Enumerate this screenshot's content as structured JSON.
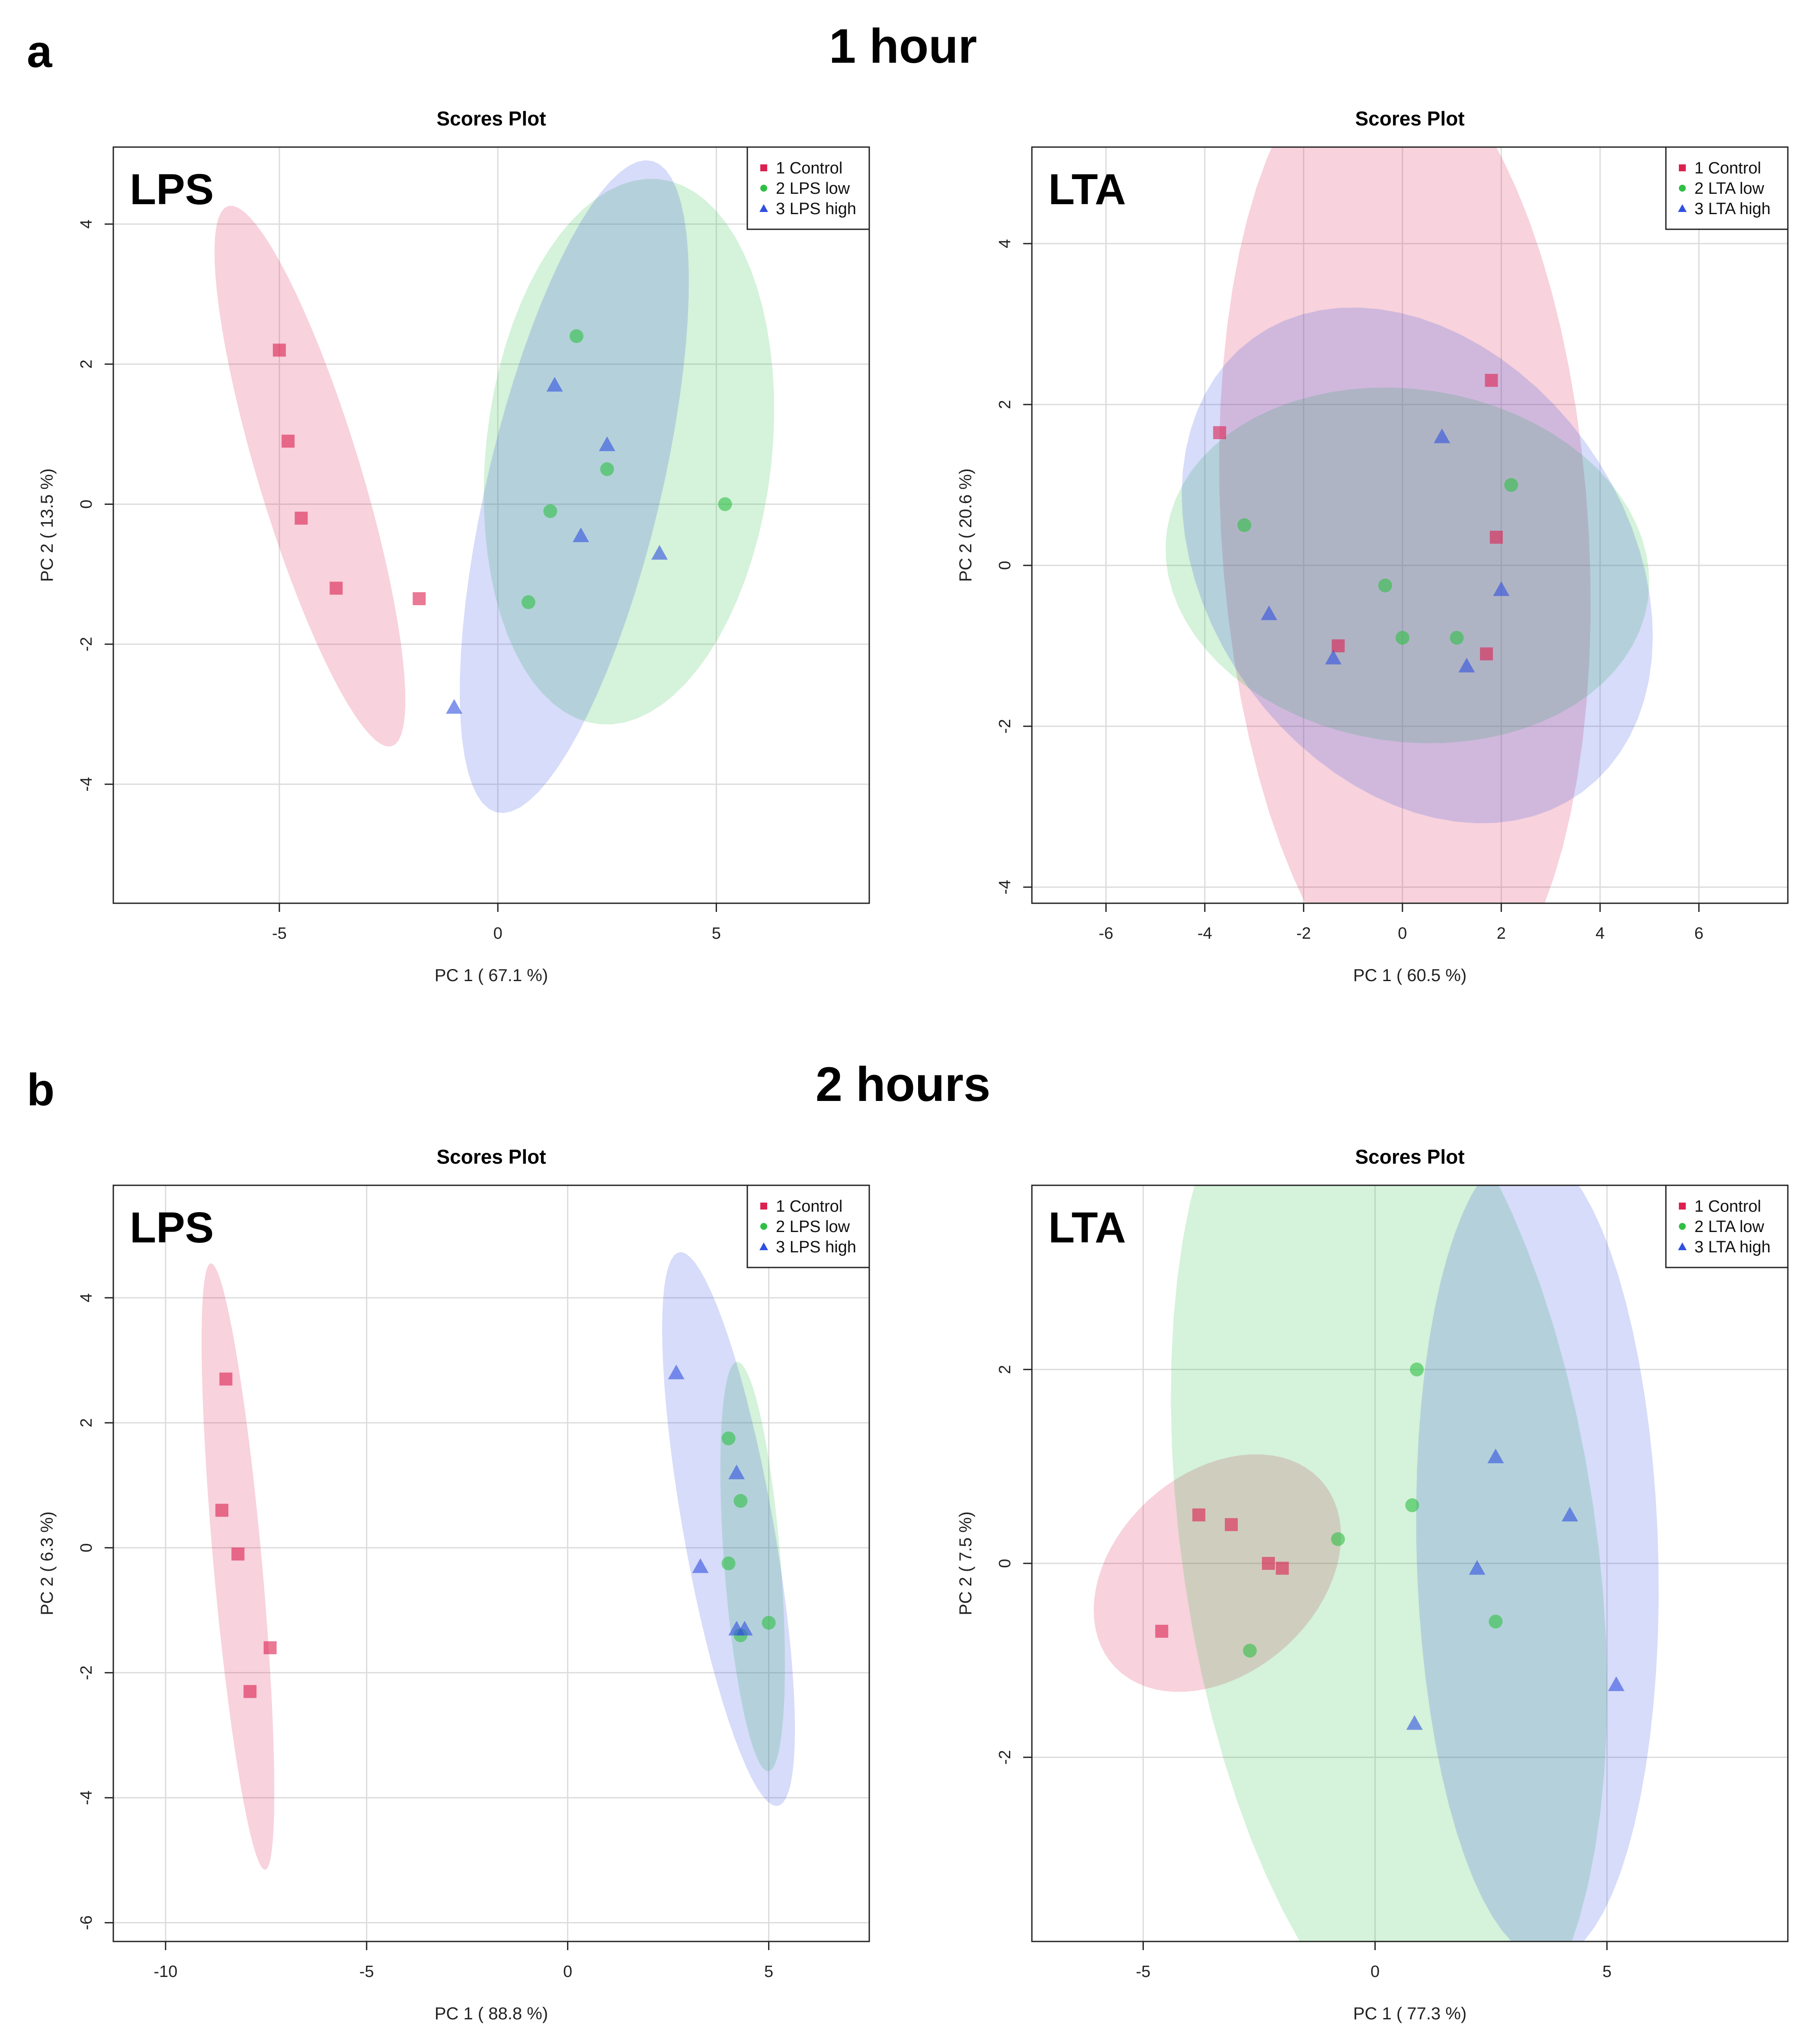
{
  "figure": {
    "rows": [
      {
        "letter": "a",
        "title": "1 hour"
      },
      {
        "letter": "b",
        "title": "2 hours"
      }
    ]
  },
  "colors": {
    "control": "#dc2050",
    "low": "#2fbf45",
    "high": "#3050e0"
  },
  "chart_data": [
    {
      "type": "scatter",
      "title": "Scores Plot",
      "panel_label": "LPS",
      "xlabel": "PC 1 ( 67.1 %)",
      "ylabel": "PC 2 ( 13.5 %)",
      "xlim": [
        -8.8,
        8.5
      ],
      "ylim": [
        -5.7,
        5.1
      ],
      "xticks": [
        -5,
        0,
        5
      ],
      "yticks": [
        -4,
        -2,
        0,
        2,
        4
      ],
      "legend": [
        "1 Control",
        "2 LPS low",
        "3 LPS high"
      ],
      "series": [
        {
          "name": "1 Control",
          "marker": "square",
          "x": [
            -5.0,
            -4.8,
            -4.5,
            -3.7,
            -1.8
          ],
          "y": [
            2.2,
            0.9,
            -0.2,
            -1.2,
            -1.35
          ],
          "ellipse": {
            "cx": -4.3,
            "cy": 0.4,
            "rx": 4.3,
            "ry": 1.1,
            "angle_deg": -63
          }
        },
        {
          "name": "2 LPS low",
          "marker": "circle",
          "x": [
            1.8,
            2.5,
            1.2,
            5.2,
            0.7
          ],
          "y": [
            2.4,
            0.5,
            -0.1,
            0.0,
            -1.4
          ],
          "ellipse": {
            "cx": 3.0,
            "cy": 0.75,
            "rx": 3.2,
            "ry": 4.0,
            "angle_deg": -22
          }
        },
        {
          "name": "3 LPS high",
          "marker": "triangle",
          "x": [
            1.3,
            2.5,
            1.9,
            3.7,
            -1.0
          ],
          "y": [
            1.7,
            0.85,
            -0.45,
            -0.7,
            -2.9
          ],
          "ellipse": {
            "cx": 1.75,
            "cy": 0.25,
            "rx": 5.0,
            "ry": 1.9,
            "angle_deg": 67
          }
        }
      ]
    },
    {
      "type": "scatter",
      "title": "Scores Plot",
      "panel_label": "LTA",
      "xlabel": "PC 1 ( 60.5 %)",
      "ylabel": "PC 2 ( 20.6 %)",
      "xlim": [
        -7.5,
        7.8
      ],
      "ylim": [
        -4.2,
        5.2
      ],
      "xticks": [
        -6,
        -4,
        -2,
        0,
        2,
        4,
        6
      ],
      "yticks": [
        -4,
        -2,
        0,
        2,
        4
      ],
      "legend": [
        "1 Control",
        "2 LTA low",
        "3 LTA high"
      ],
      "series": [
        {
          "name": "1 Control",
          "marker": "square",
          "x": [
            -3.7,
            1.8,
            1.9,
            -1.3,
            1.7
          ],
          "y": [
            1.65,
            2.3,
            0.35,
            -1.0,
            -1.1
          ],
          "ellipse": {
            "cx": 0.05,
            "cy": 0.4,
            "rx": 6.1,
            "ry": 3.7,
            "angle_deg": -82
          }
        },
        {
          "name": "2 LTA low",
          "marker": "circle",
          "x": [
            -3.2,
            2.2,
            -0.35,
            0.0,
            1.1
          ],
          "y": [
            0.5,
            1.0,
            -0.25,
            -0.9,
            -0.9
          ],
          "ellipse": {
            "cx": 0.1,
            "cy": 0.0,
            "rx": 4.9,
            "ry": 2.2,
            "angle_deg": -3
          }
        },
        {
          "name": "3 LTA high",
          "marker": "triangle",
          "x": [
            0.8,
            -2.7,
            -1.4,
            1.3,
            2.0
          ],
          "y": [
            1.6,
            -0.6,
            -1.15,
            -1.25,
            -0.3
          ],
          "ellipse": {
            "cx": 0.3,
            "cy": 0.0,
            "rx": 4.9,
            "ry": 3.0,
            "angle_deg": -17
          }
        }
      ]
    },
    {
      "type": "scatter",
      "title": "Scores Plot",
      "panel_label": "LPS",
      "xlabel": "PC 1 ( 88.8 %)",
      "ylabel": "PC 2 ( 6.3 %)",
      "xlim": [
        -11.3,
        7.5
      ],
      "ylim": [
        -6.3,
        5.8
      ],
      "xticks": [
        -10,
        -5,
        0,
        5
      ],
      "yticks": [
        -6,
        -4,
        -2,
        0,
        2,
        4
      ],
      "legend": [
        "1 Control",
        "2 LPS low",
        "3 LPS high"
      ],
      "series": [
        {
          "name": "1 Control",
          "marker": "square",
          "x": [
            -8.5,
            -8.6,
            -8.2,
            -7.4,
            -7.9
          ],
          "y": [
            2.7,
            0.6,
            -0.1,
            -1.6,
            -2.3
          ],
          "ellipse": {
            "cx": -8.2,
            "cy": -0.3,
            "rx": 4.9,
            "ry": 0.6,
            "angle_deg": -82
          }
        },
        {
          "name": "2 LPS low",
          "marker": "circle",
          "x": [
            4.0,
            4.3,
            4.0,
            4.3,
            5.0
          ],
          "y": [
            1.75,
            0.75,
            -0.25,
            -1.4,
            -1.2
          ],
          "ellipse": {
            "cx": 4.6,
            "cy": -0.3,
            "rx": 3.3,
            "ry": 0.7,
            "angle_deg": -83
          }
        },
        {
          "name": "3 LPS high",
          "marker": "triangle",
          "x": [
            2.7,
            4.2,
            3.3,
            4.2,
            4.4
          ],
          "y": [
            2.8,
            1.2,
            -0.3,
            -1.3,
            -1.3
          ],
          "ellipse": {
            "cx": 4.0,
            "cy": 0.3,
            "rx": 4.6,
            "ry": 1.1,
            "angle_deg": -74
          }
        }
      ]
    },
    {
      "type": "scatter",
      "title": "Scores Plot",
      "panel_label": "LTA",
      "xlabel": "PC 1 ( 77.3 %)",
      "ylabel": "PC 2 ( 7.5 %)",
      "xlim": [
        -7.4,
        8.9
      ],
      "ylim": [
        -3.9,
        3.9
      ],
      "xticks": [
        -5,
        0,
        5
      ],
      "yticks": [
        -2,
        0,
        2
      ],
      "legend": [
        "1 Control",
        "2 LTA low",
        "3 LTA high"
      ],
      "series": [
        {
          "name": "1 Control",
          "marker": "square",
          "x": [
            -3.8,
            -3.1,
            -2.3,
            -2.0,
            -4.6
          ],
          "y": [
            0.5,
            0.4,
            0.0,
            -0.05,
            -0.7
          ],
          "ellipse": {
            "cx": -3.4,
            "cy": -0.1,
            "rx": 2.7,
            "ry": 1.15,
            "angle_deg": 10
          }
        },
        {
          "name": "2 LTA low",
          "marker": "circle",
          "x": [
            0.9,
            0.8,
            -0.8,
            2.6,
            -2.7
          ],
          "y": [
            2.0,
            0.6,
            0.25,
            -0.6,
            -0.9
          ],
          "ellipse": {
            "cx": 0.3,
            "cy": 0.2,
            "rx": 5.8,
            "ry": 4.2,
            "angle_deg": -58
          }
        },
        {
          "name": "3 LTA high",
          "marker": "triangle",
          "x": [
            2.6,
            4.2,
            2.2,
            5.2,
            0.85
          ],
          "y": [
            1.1,
            0.5,
            -0.05,
            -1.25,
            -1.65
          ],
          "ellipse": {
            "cx": 3.5,
            "cy": 0.1,
            "rx": 4.2,
            "ry": 2.6,
            "angle_deg": 95
          }
        }
      ]
    }
  ]
}
